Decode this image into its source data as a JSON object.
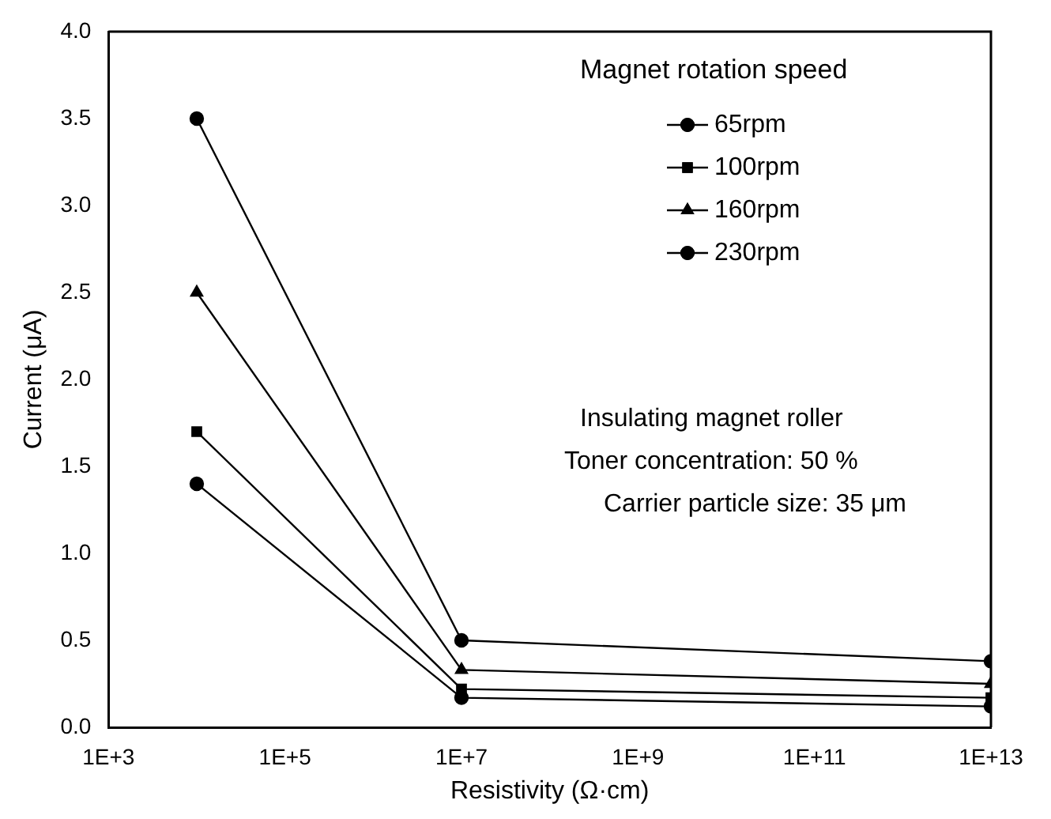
{
  "chart_data": {
    "type": "line",
    "xlabel": "Resistivity (Ω·cm)",
    "ylabel": "Current (μA)",
    "legend_title": "Magnet rotation speed",
    "legend": "top right",
    "log": "x",
    "grid": false,
    "x": [
      10000,
      10000000,
      10000000000000
    ],
    "xlim": [
      1000,
      10000000000000
    ],
    "xticks": [
      {
        "value": 1000,
        "label": "1E+3"
      },
      {
        "value": 100000,
        "label": "1E+5"
      },
      {
        "value": 10000000,
        "label": "1E+7"
      },
      {
        "value": 1000000000,
        "label": "1E+9"
      },
      {
        "value": 100000000000,
        "label": "1E+11"
      },
      {
        "value": 10000000000000,
        "label": "1E+13"
      }
    ],
    "ylim": [
      0,
      4
    ],
    "yticks": [
      {
        "value": 0,
        "label": "0.0"
      },
      {
        "value": 0.5,
        "label": "0.5"
      },
      {
        "value": 1,
        "label": "1.0"
      },
      {
        "value": 1.5,
        "label": "1.5"
      },
      {
        "value": 2,
        "label": "2.0"
      },
      {
        "value": 2.5,
        "label": "2.5"
      },
      {
        "value": 3,
        "label": "3.0"
      },
      {
        "value": 3.5,
        "label": "3.5"
      },
      {
        "value": 4,
        "label": "4.0"
      }
    ],
    "series": [
      {
        "name": "65rpm",
        "color": "#000000",
        "marker": "circle",
        "values": [
          1.4,
          0.17,
          0.12
        ]
      },
      {
        "name": "100rpm",
        "color": "#000000",
        "marker": "square",
        "values": [
          1.7,
          0.22,
          0.17
        ]
      },
      {
        "name": "160rpm",
        "color": "#000000",
        "marker": "triangle",
        "values": [
          2.5,
          0.33,
          0.25
        ]
      },
      {
        "name": "230rpm",
        "color": "#000000",
        "marker": "circle",
        "values": [
          3.5,
          0.5,
          0.38
        ]
      }
    ],
    "annotations": [
      "Insulating magnet roller",
      "Toner concentration: 50 %",
      "Carrier particle size: 35 μm"
    ]
  }
}
